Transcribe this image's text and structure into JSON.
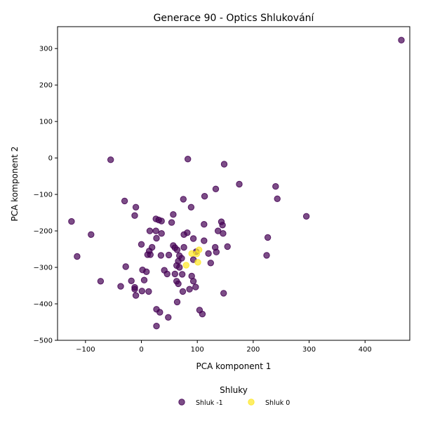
{
  "chart_data": {
    "type": "scatter",
    "title": "Generace 90 - Optics Shlukování",
    "xlabel": "PCA komponent 1",
    "ylabel": "PCA komponent 2",
    "xlim": [
      -150,
      480
    ],
    "ylim": [
      -500,
      360
    ],
    "xticks": [
      -100,
      0,
      100,
      200,
      300,
      400
    ],
    "yticks": [
      -500,
      -400,
      -300,
      -200,
      -100,
      0,
      100,
      200,
      300
    ],
    "xtick_labels": [
      "−100",
      "0",
      "100",
      "200",
      "300",
      "400"
    ],
    "ytick_labels": [
      "−500",
      "−400",
      "−300",
      "−200",
      "−100",
      "0",
      "100",
      "200",
      "300"
    ],
    "grid": false,
    "legend": {
      "title": "Shluky",
      "position": "bottom-center"
    },
    "series": [
      {
        "name": "Shluk -1",
        "color": "#440154",
        "points": [
          [
            465,
            323
          ],
          [
            -55,
            -5
          ],
          [
            83,
            -3
          ],
          [
            148,
            -17
          ],
          [
            175,
            -72
          ],
          [
            240,
            -78
          ],
          [
            133,
            -85
          ],
          [
            113,
            -105
          ],
          [
            243,
            -112
          ],
          [
            -30,
            -118
          ],
          [
            75,
            -113
          ],
          [
            89,
            -135
          ],
          [
            -10,
            -135
          ],
          [
            57,
            -155
          ],
          [
            -12,
            -158
          ],
          [
            295,
            -160
          ],
          [
            -125,
            -174
          ],
          [
            143,
            -175
          ],
          [
            54,
            -177
          ],
          [
            112,
            -182
          ],
          [
            145,
            -184
          ],
          [
            26,
            -167
          ],
          [
            31,
            -170
          ],
          [
            36,
            -173
          ],
          [
            15,
            -200
          ],
          [
            26,
            -200
          ],
          [
            -90,
            -210
          ],
          [
            36,
            -207
          ],
          [
            76,
            -210
          ],
          [
            82,
            -205
          ],
          [
            137,
            -200
          ],
          [
            146,
            -207
          ],
          [
            226,
            -218
          ],
          [
            27,
            -220
          ],
          [
            93,
            -221
          ],
          [
            112,
            -227
          ],
          [
            0,
            -237
          ],
          [
            57,
            -240
          ],
          [
            60,
            -246
          ],
          [
            19,
            -245
          ],
          [
            64,
            -252
          ],
          [
            76,
            -245
          ],
          [
            154,
            -243
          ],
          [
            132,
            -245
          ],
          [
            14,
            -255
          ],
          [
            98,
            -257
          ],
          [
            134,
            -258
          ],
          [
            120,
            -262
          ],
          [
            11,
            -265
          ],
          [
            16,
            -265
          ],
          [
            35,
            -267
          ],
          [
            49,
            -266
          ],
          [
            68,
            -268
          ],
          [
            224,
            -267
          ],
          [
            72,
            -275
          ],
          [
            -115,
            -270
          ],
          [
            93,
            -279
          ],
          [
            66,
            -283
          ],
          [
            124,
            -288
          ],
          [
            63,
            -295
          ],
          [
            68,
            -300
          ],
          [
            -28,
            -298
          ],
          [
            41,
            -308
          ],
          [
            2,
            -307
          ],
          [
            9,
            -312
          ],
          [
            46,
            -318
          ],
          [
            60,
            -318
          ],
          [
            73,
            -319
          ],
          [
            90,
            -324
          ],
          [
            -73,
            -338
          ],
          [
            5,
            -335
          ],
          [
            63,
            -338
          ],
          [
            93,
            -338
          ],
          [
            66,
            -345
          ],
          [
            -37,
            -352
          ],
          [
            -12,
            -355
          ],
          [
            97,
            -354
          ],
          [
            -12,
            -360
          ],
          [
            86,
            -360
          ],
          [
            1,
            -365
          ],
          [
            13,
            -366
          ],
          [
            74,
            -366
          ],
          [
            147,
            -371
          ],
          [
            -10,
            -377
          ],
          [
            64,
            -395
          ],
          [
            104,
            -417
          ],
          [
            27,
            -415
          ],
          [
            33,
            -423
          ],
          [
            109,
            -428
          ],
          [
            48,
            -437
          ],
          [
            27,
            -461
          ],
          [
            -18,
            -337
          ]
        ]
      },
      {
        "name": "Shluk 0",
        "color": "#fde725",
        "points": [
          [
            103,
            -252
          ],
          [
            90,
            -262
          ],
          [
            99,
            -263
          ],
          [
            80,
            -294
          ],
          [
            101,
            -286
          ]
        ]
      }
    ]
  }
}
